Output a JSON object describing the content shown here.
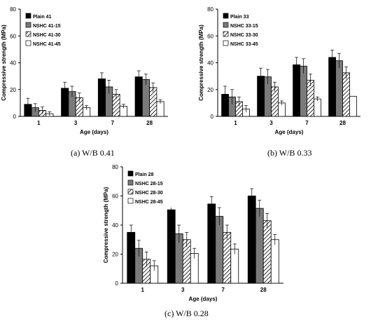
{
  "captions": [
    "(a) W/B 0.41",
    "(b) W/B 0.33",
    "(c) W/B 0.28"
  ],
  "chart_data": [
    {
      "type": "bar",
      "title": "",
      "xlabel": "Age (days)",
      "ylabel": "Compressive strength (MPa)",
      "ylim": [
        0,
        80
      ],
      "yticks": [
        0,
        20,
        40,
        60,
        80
      ],
      "categories": [
        "1",
        "3",
        "7",
        "28"
      ],
      "legend": "top-left",
      "grid": false,
      "series": [
        {
          "name": "Plain 41",
          "values": [
            9,
            21,
            28,
            29.5
          ],
          "errors": [
            4.5,
            4.5,
            4.5,
            4.5
          ],
          "color": "#000000",
          "fill": "solid"
        },
        {
          "name": "NSHC 41-15",
          "values": [
            6.5,
            18.5,
            22,
            27.5
          ],
          "errors": [
            3,
            4,
            5,
            4
          ],
          "color": "#7a7a7a",
          "fill": "solid"
        },
        {
          "name": "NSHC 41-30",
          "values": [
            4.5,
            14,
            16.5,
            21.5
          ],
          "errors": [
            2.5,
            3.5,
            3.5,
            3.5
          ],
          "color": "#ffffff",
          "fill": "hatch"
        },
        {
          "name": "NSHC 41-45",
          "values": [
            2,
            6.5,
            7.5,
            11
          ],
          "errors": [
            1.5,
            1.5,
            1.5,
            1.5
          ],
          "color": "#ffffff",
          "fill": "white"
        }
      ]
    },
    {
      "type": "bar",
      "title": "",
      "xlabel": "Age (days)",
      "ylabel": "Compressive strength (MPa)",
      "ylim": [
        0,
        80
      ],
      "yticks": [
        0,
        20,
        40,
        60,
        80
      ],
      "categories": [
        "1",
        "3",
        "7",
        "28"
      ],
      "legend": "top-left",
      "grid": false,
      "series": [
        {
          "name": "Plain 33",
          "values": [
            16.5,
            30,
            38.5,
            44
          ],
          "errors": [
            6,
            6,
            5.5,
            5.5
          ],
          "color": "#000000",
          "fill": "solid"
        },
        {
          "name": "NSHC 33-15",
          "values": [
            14.5,
            29.5,
            37.5,
            41.5
          ],
          "errors": [
            5.5,
            5.5,
            5.5,
            5.5
          ],
          "color": "#7a7a7a",
          "fill": "solid"
        },
        {
          "name": "NSHC 33-30",
          "values": [
            11,
            22,
            27,
            32.5
          ],
          "errors": [
            3.5,
            3.5,
            4.5,
            4.5
          ],
          "color": "#ffffff",
          "fill": "hatch"
        },
        {
          "name": "NSHC 33-45",
          "values": [
            5.5,
            10,
            13,
            15
          ],
          "errors": [
            2.5,
            1.5,
            1.5,
            0
          ],
          "color": "#ffffff",
          "fill": "white"
        }
      ]
    },
    {
      "type": "bar",
      "title": "",
      "xlabel": "Age (days)",
      "ylabel": "Compressive strength (MPa)",
      "ylim": [
        0,
        80
      ],
      "yticks": [
        0,
        20,
        40,
        60,
        80
      ],
      "categories": [
        "1",
        "3",
        "7",
        "28"
      ],
      "legend": "top-left",
      "grid": false,
      "series": [
        {
          "name": "Plain 28",
          "values": [
            35,
            50.5,
            54.5,
            60
          ],
          "errors": [
            5,
            5,
            5,
            5
          ],
          "color": "#000000",
          "fill": "solid"
        },
        {
          "name": "NSHC 28-15",
          "values": [
            24,
            34,
            46,
            51.5
          ],
          "errors": [
            5.5,
            6,
            6,
            5.5
          ],
          "color": "#7a7a7a",
          "fill": "solid"
        },
        {
          "name": "NSHC 28-30",
          "values": [
            16.5,
            30,
            35,
            43
          ],
          "errors": [
            5,
            5,
            5,
            5
          ],
          "color": "#ffffff",
          "fill": "hatch"
        },
        {
          "name": "NSHC 28-45",
          "values": [
            12,
            20.5,
            23.5,
            30
          ],
          "errors": [
            3.5,
            3.5,
            3.5,
            3.5
          ],
          "color": "#ffffff",
          "fill": "white"
        }
      ]
    }
  ]
}
